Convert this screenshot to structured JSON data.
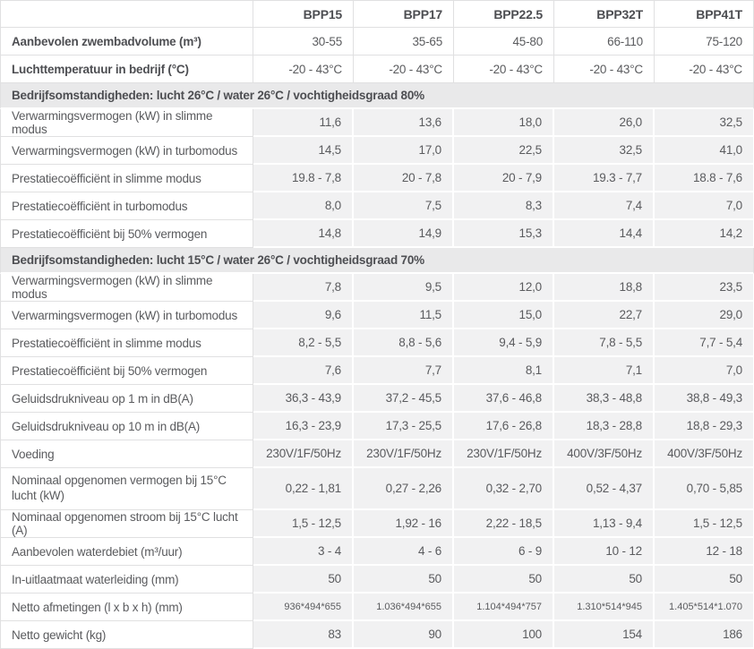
{
  "colors": {
    "text": "#5a5b5e",
    "heading": "#4d4e52",
    "border": "#e0e0e1",
    "row_shade": "#f1f1f2",
    "section_shade": "#e9e9ea"
  },
  "table": {
    "columns": [
      "",
      "BPP15",
      "BPP17",
      "BPP22.5",
      "BPP32T",
      "BPP41T"
    ],
    "rows": [
      {
        "type": "data",
        "bold": true,
        "white": true,
        "label": "Aanbevolen zwembadvolume (m³)",
        "values": [
          "30-55",
          "35-65",
          "45-80",
          "66-110",
          "75-120"
        ]
      },
      {
        "type": "data",
        "bold": true,
        "white": true,
        "label": "Luchttemperatuur in bedrijf (°C)",
        "values": [
          "-20 - 43°C",
          "-20 - 43°C",
          "-20 - 43°C",
          "-20 - 43°C",
          "-20 - 43°C"
        ]
      },
      {
        "type": "section",
        "label": "Bedrijfsomstandigheden: lucht 26°C / water 26°C / vochtigheidsgraad 80%"
      },
      {
        "type": "data",
        "label": "Verwarmingsvermogen (kW) in slimme modus",
        "values": [
          "11,6",
          "13,6",
          "18,0",
          "26,0",
          "32,5"
        ]
      },
      {
        "type": "data",
        "label": "Verwarmingsvermogen (kW) in turbomodus",
        "values": [
          "14,5",
          "17,0",
          "22,5",
          "32,5",
          "41,0"
        ]
      },
      {
        "type": "data",
        "label": "Prestatiecoëfficiënt in slimme modus",
        "values": [
          "19.8 - 7,8",
          "20 - 7,8",
          "20 - 7,9",
          "19.3 - 7,7",
          "18.8 - 7,6"
        ]
      },
      {
        "type": "data",
        "label": "Prestatiecoëfficiënt in turbomodus",
        "values": [
          "8,0",
          "7,5",
          "8,3",
          "7,4",
          "7,0"
        ]
      },
      {
        "type": "data",
        "label": "Prestatiecoëfficiënt bij 50% vermogen",
        "values": [
          "14,8",
          "14,9",
          "15,3",
          "14,4",
          "14,2"
        ]
      },
      {
        "type": "section",
        "label": "Bedrijfsomstandigheden: lucht 15°C / water 26°C / vochtigheidsgraad 70%"
      },
      {
        "type": "data",
        "label": "Verwarmingsvermogen (kW) in slimme modus",
        "values": [
          "7,8",
          "9,5",
          "12,0",
          "18,8",
          "23,5"
        ]
      },
      {
        "type": "data",
        "label": "Verwarmingsvermogen (kW) in turbomodus",
        "values": [
          "9,6",
          "11,5",
          "15,0",
          "22,7",
          "29,0"
        ]
      },
      {
        "type": "data",
        "label": "Prestatiecoëfficiënt in slimme modus",
        "values": [
          "8,2 - 5,5",
          "8,8 - 5,6",
          "9,4 - 5,9",
          "7,8 - 5,5",
          "7,7 - 5,4"
        ]
      },
      {
        "type": "data",
        "label": "Prestatiecoëfficiënt bij 50% vermogen",
        "values": [
          "7,6",
          "7,7",
          "8,1",
          "7,1",
          "7,0"
        ]
      },
      {
        "type": "data",
        "label": "Geluidsdrukniveau op 1 m in dB(A)",
        "values": [
          "36,3 - 43,9",
          "37,2 - 45,5",
          "37,6 - 46,8",
          "38,3 - 48,8",
          "38,8 - 49,3"
        ]
      },
      {
        "type": "data",
        "label": "Geluidsdrukniveau op 10 m in dB(A)",
        "values": [
          "16,3 - 23,9",
          "17,3 - 25,5",
          "17,6 - 26,8",
          "18,3 - 28,8",
          "18,8 - 29,3"
        ]
      },
      {
        "type": "data",
        "label": "Voeding",
        "values": [
          "230V/1F/50Hz",
          "230V/1F/50Hz",
          "230V/1F/50Hz",
          "400V/3F/50Hz",
          "400V/3F/50Hz"
        ]
      },
      {
        "type": "data",
        "tall": true,
        "label": "Nominaal opgenomen vermogen bij 15°C lucht (kW)",
        "values": [
          "0,22 - 1,81",
          "0,27 - 2,26",
          "0,32 - 2,70",
          "0,52 - 4,37",
          "0,70 - 5,85"
        ]
      },
      {
        "type": "data",
        "label": "Nominaal opgenomen stroom bij 15°C lucht (A)",
        "values": [
          "1,5 - 12,5",
          "1,92 - 16",
          "2,22 - 18,5",
          "1,13 - 9,4",
          "1,5 - 12,5"
        ]
      },
      {
        "type": "data",
        "label": "Aanbevolen waterdebiet (m³/uur)",
        "values": [
          "3 - 4",
          "4 - 6",
          "6 - 9",
          "10 - 12",
          "12 - 18"
        ]
      },
      {
        "type": "data",
        "label": "In-uitlaatmaat waterleiding (mm)",
        "values": [
          "50",
          "50",
          "50",
          "50",
          "50"
        ]
      },
      {
        "type": "data",
        "small": true,
        "label": "Netto afmetingen (l x b x h) (mm)",
        "values": [
          "936*494*655",
          "1.036*494*655",
          "1.104*494*757",
          "1.310*514*945",
          "1.405*514*1.070"
        ]
      },
      {
        "type": "data",
        "label": "Netto gewicht (kg)",
        "values": [
          "83",
          "90",
          "100",
          "154",
          "186"
        ]
      }
    ]
  }
}
